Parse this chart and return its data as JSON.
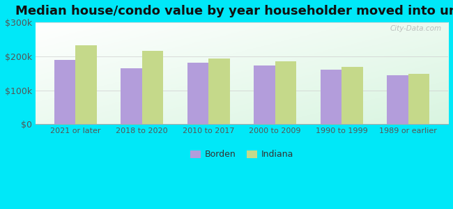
{
  "title": "Median house/condo value by year householder moved into unit",
  "categories": [
    "2021 or later",
    "2018 to 2020",
    "2010 to 2017",
    "2000 to 2009",
    "1990 to 1999",
    "1989 or earlier"
  ],
  "borden_values": [
    190000,
    165000,
    182000,
    172000,
    160000,
    145000
  ],
  "indiana_values": [
    232000,
    215000,
    193000,
    185000,
    168000,
    148000
  ],
  "borden_color": "#b39ddb",
  "indiana_color": "#c5d98a",
  "ylim": [
    0,
    300000
  ],
  "yticks": [
    0,
    100000,
    200000,
    300000
  ],
  "ytick_labels": [
    "$0",
    "$100k",
    "$200k",
    "$300k"
  ],
  "background_outer": "#00e8f8",
  "watermark": "City-Data.com",
  "legend_labels": [
    "Borden",
    "Indiana"
  ],
  "title_fontsize": 13,
  "bar_width": 0.32,
  "grid_color": "#cccccc"
}
